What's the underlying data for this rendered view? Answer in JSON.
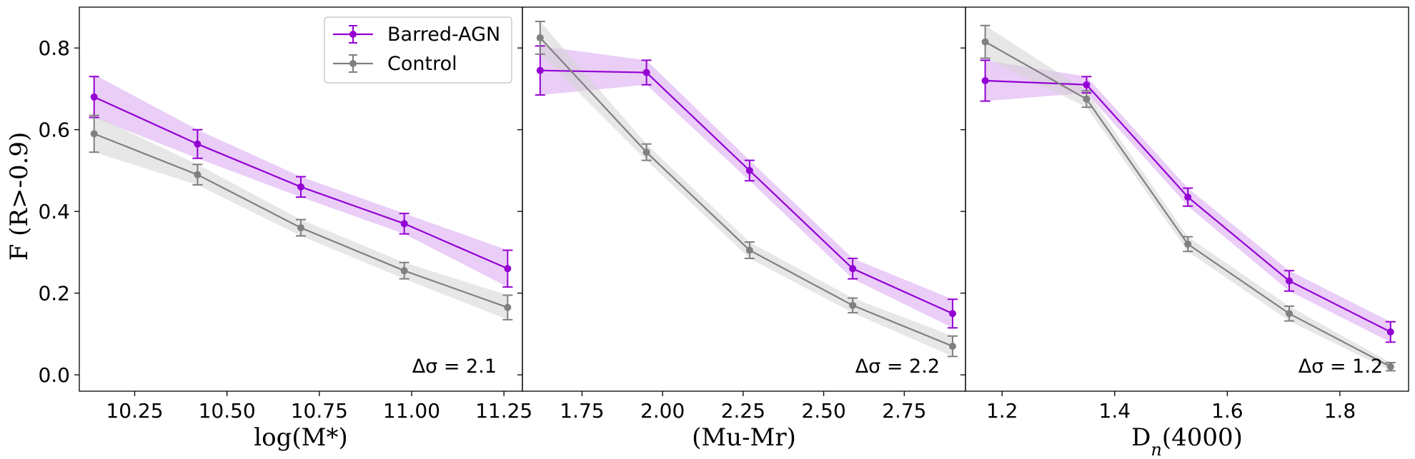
{
  "colors": {
    "barred_agn": "#9400d3",
    "barred_agn_band": "#d9a6f0",
    "control": "#808080",
    "control_band": "#d3d3d3"
  },
  "legend": {
    "barred_agn": "Barred-AGN",
    "control": "Control"
  },
  "y_axis": {
    "label": "F (R>-0.9)",
    "ylim": [
      -0.04,
      0.9
    ],
    "ticks": [
      0.0,
      0.2,
      0.4,
      0.6,
      0.8
    ],
    "tick_labels": [
      "0.0",
      "0.2",
      "0.4",
      "0.6",
      "0.8"
    ]
  },
  "chart_data": [
    {
      "type": "line",
      "xlabel": "log(M*)",
      "xlim": [
        10.1,
        11.3
      ],
      "x_ticks": [
        10.25,
        10.5,
        10.75,
        11.0,
        11.25
      ],
      "x_tick_labels": [
        "10.25",
        "10.50",
        "10.75",
        "11.00",
        "11.25"
      ],
      "annotation": "Δσ = 2.1",
      "series": [
        {
          "name": "Barred-AGN",
          "x": [
            10.14,
            10.42,
            10.7,
            10.98,
            11.26
          ],
          "y": [
            0.68,
            0.565,
            0.46,
            0.37,
            0.26
          ],
          "err": [
            0.05,
            0.035,
            0.025,
            0.025,
            0.045
          ],
          "band_low": [
            0.63,
            0.53,
            0.435,
            0.345,
            0.215
          ],
          "band_high": [
            0.735,
            0.6,
            0.485,
            0.395,
            0.305
          ]
        },
        {
          "name": "Control",
          "x": [
            10.14,
            10.42,
            10.7,
            10.98,
            11.26
          ],
          "y": [
            0.59,
            0.49,
            0.36,
            0.255,
            0.165
          ],
          "err": [
            0.045,
            0.025,
            0.02,
            0.02,
            0.03
          ],
          "band_low": [
            0.545,
            0.465,
            0.34,
            0.235,
            0.135
          ],
          "band_high": [
            0.635,
            0.515,
            0.38,
            0.275,
            0.195
          ]
        }
      ]
    },
    {
      "type": "line",
      "xlabel": "(Mu-Mr)",
      "xlim": [
        1.565,
        2.94
      ],
      "x_ticks": [
        1.75,
        2.0,
        2.25,
        2.5,
        2.75
      ],
      "x_tick_labels": [
        "1.75",
        "2.00",
        "2.25",
        "2.50",
        "2.75"
      ],
      "annotation": "Δσ = 2.2",
      "series": [
        {
          "name": "Barred-AGN",
          "x": [
            1.62,
            1.95,
            2.27,
            2.59,
            2.9
          ],
          "y": [
            0.745,
            0.74,
            0.5,
            0.26,
            0.15
          ],
          "err": [
            0.06,
            0.03,
            0.025,
            0.025,
            0.035
          ],
          "band_low": [
            0.685,
            0.71,
            0.475,
            0.235,
            0.115
          ],
          "band_high": [
            0.805,
            0.77,
            0.525,
            0.285,
            0.185
          ]
        },
        {
          "name": "Control",
          "x": [
            1.62,
            1.95,
            2.27,
            2.59,
            2.9
          ],
          "y": [
            0.825,
            0.545,
            0.305,
            0.17,
            0.07
          ],
          "err": [
            0.04,
            0.02,
            0.02,
            0.018,
            0.025
          ],
          "band_low": [
            0.785,
            0.525,
            0.285,
            0.152,
            0.045
          ],
          "band_high": [
            0.865,
            0.565,
            0.325,
            0.188,
            0.095
          ]
        }
      ]
    },
    {
      "type": "line",
      "xlabel": "D",
      "xlabel_subscript": "n",
      "xlabel_suffix": "(4000)",
      "xlim": [
        1.135,
        1.922
      ],
      "x_ticks": [
        1.2,
        1.4,
        1.6,
        1.8
      ],
      "x_tick_labels": [
        "1.2",
        "1.4",
        "1.6",
        "1.8"
      ],
      "annotation": "Δσ = 1.2",
      "series": [
        {
          "name": "Barred-AGN",
          "x": [
            1.17,
            1.35,
            1.53,
            1.71,
            1.89
          ],
          "y": [
            0.72,
            0.71,
            0.435,
            0.23,
            0.105
          ],
          "err": [
            0.05,
            0.02,
            0.022,
            0.025,
            0.025
          ],
          "band_low": [
            0.67,
            0.69,
            0.413,
            0.205,
            0.08
          ],
          "band_high": [
            0.77,
            0.73,
            0.457,
            0.255,
            0.13
          ]
        },
        {
          "name": "Control",
          "x": [
            1.17,
            1.35,
            1.53,
            1.71,
            1.89
          ],
          "y": [
            0.815,
            0.675,
            0.32,
            0.15,
            0.02
          ],
          "err": [
            0.04,
            0.02,
            0.018,
            0.018,
            0.01
          ],
          "band_low": [
            0.775,
            0.655,
            0.302,
            0.132,
            0.01
          ],
          "band_high": [
            0.855,
            0.695,
            0.338,
            0.168,
            0.03
          ]
        }
      ]
    }
  ]
}
